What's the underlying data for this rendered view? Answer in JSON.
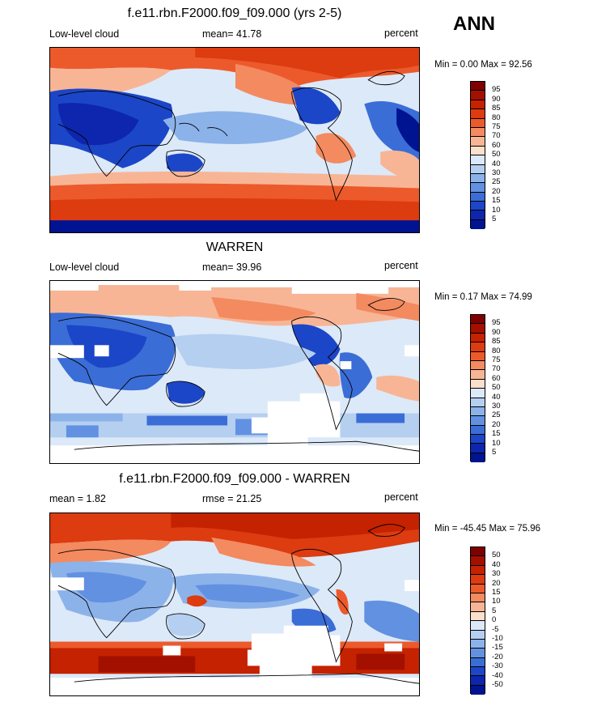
{
  "season": "ANN",
  "panels": [
    {
      "title": "f.e11.rbn.F2000.f09_f09.000 (yrs 2-5)",
      "left_label": "Low-level cloud",
      "center_label": "mean=  41.78",
      "right_label": "percent",
      "minmax": "Min =   0.00 Max =  92.56"
    },
    {
      "title": "WARREN",
      "left_label": "Low-level cloud",
      "center_label": "mean=  39.96",
      "right_label": "percent",
      "minmax": "Min =   0.17 Max =  74.99"
    },
    {
      "title": "f.e11.rbn.F2000.f09_f09.000 - WARREN",
      "left_label": "mean =   1.82",
      "center_label": "rmse =  21.25",
      "right_label": "percent",
      "minmax": "Min = -45.45 Max =  75.96"
    }
  ],
  "colorbars": {
    "absolute": {
      "levels": [
        "95",
        "90",
        "85",
        "80",
        "75",
        "70",
        "60",
        "50",
        "40",
        "30",
        "25",
        "20",
        "15",
        "10",
        "5"
      ],
      "colors": [
        "#7f0000",
        "#a31000",
        "#c42200",
        "#dd3b10",
        "#ec5a2c",
        "#f38a60",
        "#f8b595",
        "#fbe0cc",
        "#dce9f8",
        "#b5cff1",
        "#8cb2ea",
        "#6291e1",
        "#3b6dd6",
        "#1c46c8",
        "#0d26ad",
        "#001390"
      ]
    },
    "difference": {
      "levels": [
        "50",
        "40",
        "30",
        "20",
        "15",
        "10",
        "5",
        "0",
        "-5",
        "-10",
        "-15",
        "-20",
        "-30",
        "-40",
        "-50"
      ],
      "colors": [
        "#7f0000",
        "#a31000",
        "#c42200",
        "#dd3b10",
        "#ec5a2c",
        "#f38a60",
        "#f8b595",
        "#fbe0cc",
        "#dce9f8",
        "#b5cff1",
        "#8cb2ea",
        "#6291e1",
        "#3b6dd6",
        "#1c46c8",
        "#0d26ad",
        "#001390"
      ]
    }
  }
}
